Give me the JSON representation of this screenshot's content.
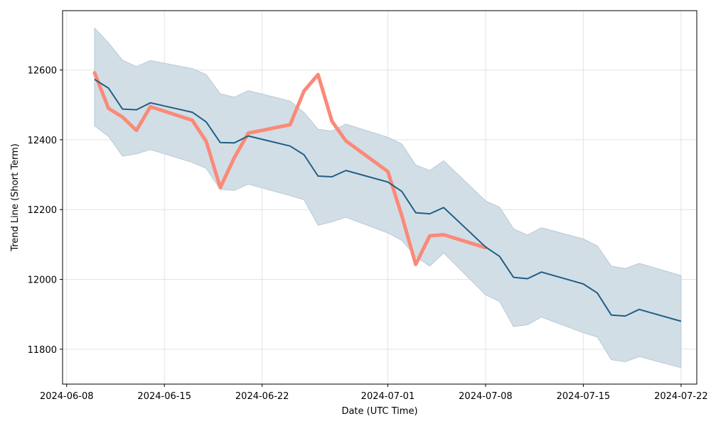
{
  "chart_data": {
    "type": "line",
    "title": "",
    "xlabel": "Date (UTC Time)",
    "ylabel": "Trend Line (Short Term)",
    "xlim": [
      "2024-06-07T17:00",
      "2024-07-23T03:00"
    ],
    "ylim": [
      11700,
      12770
    ],
    "grid": true,
    "x_ticks": [
      "2024-06-08",
      "2024-06-15",
      "2024-06-22",
      "2024-07-01",
      "2024-07-08",
      "2024-07-15",
      "2024-07-22"
    ],
    "y_ticks": [
      11800,
      12000,
      12200,
      12400,
      12600
    ],
    "colors": {
      "band": "#d2dee6",
      "band_edge": "#b9cad6",
      "trend": "#1f5f86",
      "highlight": "#fa8a78",
      "grid": "#e3e3e3"
    },
    "series": [
      {
        "role": "trend",
        "x": [
          "2024-06-10",
          "2024-06-11",
          "2024-06-12",
          "2024-06-13",
          "2024-06-14",
          "2024-06-17",
          "2024-06-18",
          "2024-06-19",
          "2024-06-20",
          "2024-06-21",
          "2024-06-24",
          "2024-06-25",
          "2024-06-26",
          "2024-06-27",
          "2024-06-28",
          "2024-07-01",
          "2024-07-02",
          "2024-07-03",
          "2024-07-04",
          "2024-07-05",
          "2024-07-08",
          "2024-07-09",
          "2024-07-10",
          "2024-07-11",
          "2024-07-12",
          "2024-07-15",
          "2024-07-16",
          "2024-07-17",
          "2024-07-18",
          "2024-07-19",
          "2024-07-22"
        ],
        "values": [
          12573,
          12548,
          12488,
          12486,
          12506,
          12479,
          12451,
          12392,
          12391,
          12411,
          12382,
          12357,
          12296,
          12294,
          12312,
          12279,
          12252,
          12191,
          12188,
          12206,
          12093,
          12066,
          12006,
          12002,
          12021,
          11987,
          11961,
          11898,
          11895,
          11914,
          11880
        ]
      },
      {
        "role": "upper",
        "x": [
          "2024-06-10",
          "2024-06-11",
          "2024-06-12",
          "2024-06-13",
          "2024-06-14",
          "2024-06-17",
          "2024-06-18",
          "2024-06-19",
          "2024-06-20",
          "2024-06-21",
          "2024-06-24",
          "2024-06-25",
          "2024-06-26",
          "2024-06-27",
          "2024-06-28",
          "2024-07-01",
          "2024-07-02",
          "2024-07-03",
          "2024-07-04",
          "2024-07-05",
          "2024-07-08",
          "2024-07-09",
          "2024-07-10",
          "2024-07-11",
          "2024-07-12",
          "2024-07-15",
          "2024-07-16",
          "2024-07-17",
          "2024-07-18",
          "2024-07-19",
          "2024-07-22"
        ],
        "values": [
          12720,
          12678,
          12628,
          12610,
          12627,
          12604,
          12587,
          12532,
          12522,
          12541,
          12511,
          12478,
          12430,
          12425,
          12445,
          12407,
          12388,
          12328,
          12312,
          12340,
          12225,
          12207,
          12145,
          12127,
          12148,
          12116,
          12096,
          12038,
          12031,
          12046,
          12011
        ]
      },
      {
        "role": "lower",
        "x": [
          "2024-06-10",
          "2024-06-11",
          "2024-06-12",
          "2024-06-13",
          "2024-06-14",
          "2024-06-17",
          "2024-06-18",
          "2024-06-19",
          "2024-06-20",
          "2024-06-21",
          "2024-06-24",
          "2024-06-25",
          "2024-06-26",
          "2024-06-27",
          "2024-06-28",
          "2024-07-01",
          "2024-07-02",
          "2024-07-03",
          "2024-07-04",
          "2024-07-05",
          "2024-07-08",
          "2024-07-09",
          "2024-07-10",
          "2024-07-11",
          "2024-07-12",
          "2024-07-15",
          "2024-07-16",
          "2024-07-17",
          "2024-07-18",
          "2024-07-19",
          "2024-07-22"
        ],
        "values": [
          12440,
          12410,
          12353,
          12360,
          12372,
          12335,
          12318,
          12258,
          12255,
          12273,
          12240,
          12228,
          12155,
          12165,
          12178,
          12133,
          12112,
          12066,
          12038,
          12076,
          11956,
          11937,
          11865,
          11870,
          11892,
          11847,
          11835,
          11770,
          11764,
          11779,
          11747
        ]
      },
      {
        "role": "highlight",
        "x": [
          "2024-06-10",
          "2024-06-11",
          "2024-06-12",
          "2024-06-13",
          "2024-06-14",
          "2024-06-17",
          "2024-06-18",
          "2024-06-19",
          "2024-06-20",
          "2024-06-21",
          "2024-06-24",
          "2024-06-25",
          "2024-06-26",
          "2024-06-27",
          "2024-06-28",
          "2024-07-01",
          "2024-07-02",
          "2024-07-03",
          "2024-07-04",
          "2024-07-05",
          "2024-07-08"
        ],
        "values": [
          12592,
          12490,
          12465,
          12427,
          12495,
          12456,
          12395,
          12263,
          12348,
          12419,
          12443,
          12540,
          12587,
          12453,
          12397,
          12309,
          12183,
          12043,
          12125,
          12128,
          12091
        ]
      }
    ]
  }
}
